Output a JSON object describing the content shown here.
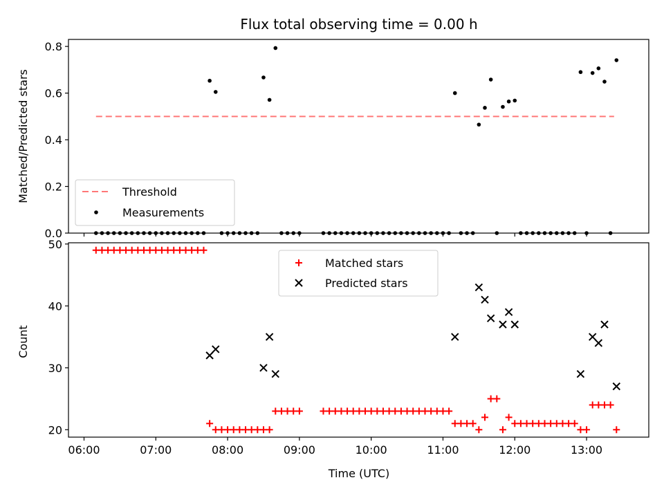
{
  "chart_data": [
    {
      "type": "scatter",
      "title": "Flux total observing time = 0.00 h",
      "xlabel": "",
      "ylabel": "Matched/Predicted stars",
      "ylim": [
        0,
        0.83
      ],
      "yticks": [
        "0.0",
        "0.2",
        "0.4",
        "0.6",
        "0.8"
      ],
      "ytick_values": [
        0.0,
        0.2,
        0.4,
        0.6,
        0.8
      ],
      "legend_position": "lower-left",
      "grid": false,
      "threshold": {
        "name": "Threshold",
        "value": 0.5,
        "x_start": "06:10",
        "x_end": "13:23",
        "color": "#ff7777",
        "style": "dashed"
      },
      "series": [
        {
          "name": "Measurements",
          "color": "#000000",
          "marker": "dot",
          "points": [
            [
              "06:10",
              0
            ],
            [
              "06:15",
              0
            ],
            [
              "06:20",
              0
            ],
            [
              "06:25",
              0
            ],
            [
              "06:30",
              0
            ],
            [
              "06:35",
              0
            ],
            [
              "06:40",
              0
            ],
            [
              "06:45",
              0
            ],
            [
              "06:50",
              0
            ],
            [
              "06:55",
              0
            ],
            [
              "07:00",
              0
            ],
            [
              "07:05",
              0
            ],
            [
              "07:10",
              0
            ],
            [
              "07:15",
              0
            ],
            [
              "07:20",
              0
            ],
            [
              "07:25",
              0
            ],
            [
              "07:30",
              0
            ],
            [
              "07:35",
              0
            ],
            [
              "07:40",
              0
            ],
            [
              "07:45",
              0.653
            ],
            [
              "07:50",
              0.605
            ],
            [
              "07:55",
              0
            ],
            [
              "08:00",
              0
            ],
            [
              "08:05",
              0
            ],
            [
              "08:10",
              0
            ],
            [
              "08:15",
              0
            ],
            [
              "08:20",
              0
            ],
            [
              "08:25",
              0
            ],
            [
              "08:30",
              0.667
            ],
            [
              "08:35",
              0.571
            ],
            [
              "08:40",
              0.793
            ],
            [
              "08:45",
              0
            ],
            [
              "08:50",
              0
            ],
            [
              "08:55",
              0
            ],
            [
              "09:00",
              0
            ],
            [
              "09:20",
              0
            ],
            [
              "09:25",
              0
            ],
            [
              "09:30",
              0
            ],
            [
              "09:35",
              0
            ],
            [
              "09:40",
              0
            ],
            [
              "09:45",
              0
            ],
            [
              "09:50",
              0
            ],
            [
              "09:55",
              0
            ],
            [
              "10:00",
              0
            ],
            [
              "10:05",
              0
            ],
            [
              "10:10",
              0
            ],
            [
              "10:15",
              0
            ],
            [
              "10:20",
              0
            ],
            [
              "10:25",
              0
            ],
            [
              "10:30",
              0
            ],
            [
              "10:35",
              0
            ],
            [
              "10:40",
              0
            ],
            [
              "10:45",
              0
            ],
            [
              "10:50",
              0
            ],
            [
              "10:55",
              0
            ],
            [
              "11:00",
              0
            ],
            [
              "11:05",
              0
            ],
            [
              "11:10",
              0.6
            ],
            [
              "11:15",
              0
            ],
            [
              "11:20",
              0
            ],
            [
              "11:25",
              0
            ],
            [
              "11:30",
              0.465
            ],
            [
              "11:35",
              0.537
            ],
            [
              "11:40",
              0.658
            ],
            [
              "11:45",
              0
            ],
            [
              "11:50",
              0.541
            ],
            [
              "11:55",
              0.564
            ],
            [
              "12:00",
              0.568
            ],
            [
              "12:05",
              0
            ],
            [
              "12:10",
              0
            ],
            [
              "12:15",
              0
            ],
            [
              "12:20",
              0
            ],
            [
              "12:25",
              0
            ],
            [
              "12:30",
              0
            ],
            [
              "12:35",
              0
            ],
            [
              "12:40",
              0
            ],
            [
              "12:45",
              0
            ],
            [
              "12:50",
              0
            ],
            [
              "12:55",
              0.69
            ],
            [
              "13:00",
              0
            ],
            [
              "13:05",
              0.686
            ],
            [
              "13:10",
              0.706
            ],
            [
              "13:15",
              0.649
            ],
            [
              "13:20",
              0
            ],
            [
              "13:25",
              0.741
            ]
          ]
        }
      ]
    },
    {
      "type": "scatter",
      "title": "",
      "xlabel": "Time (UTC)",
      "ylabel": "Count",
      "ylim": [
        18.8,
        50.2
      ],
      "yticks": [
        "20",
        "30",
        "40",
        "50"
      ],
      "ytick_values": [
        20,
        30,
        40,
        50
      ],
      "xlim": [
        "05:47",
        "13:52"
      ],
      "xticks": [
        "06:00",
        "07:00",
        "08:00",
        "09:00",
        "10:00",
        "11:00",
        "12:00",
        "13:00"
      ],
      "legend_position": "upper-center",
      "grid": false,
      "series": [
        {
          "name": "Matched stars",
          "color": "#ff0000",
          "marker": "plus",
          "points": [
            [
              "06:10",
              49
            ],
            [
              "06:15",
              49
            ],
            [
              "06:20",
              49
            ],
            [
              "06:25",
              49
            ],
            [
              "06:30",
              49
            ],
            [
              "06:35",
              49
            ],
            [
              "06:40",
              49
            ],
            [
              "06:45",
              49
            ],
            [
              "06:50",
              49
            ],
            [
              "06:55",
              49
            ],
            [
              "07:00",
              49
            ],
            [
              "07:05",
              49
            ],
            [
              "07:10",
              49
            ],
            [
              "07:15",
              49
            ],
            [
              "07:20",
              49
            ],
            [
              "07:25",
              49
            ],
            [
              "07:30",
              49
            ],
            [
              "07:35",
              49
            ],
            [
              "07:40",
              49
            ],
            [
              "07:45",
              21
            ],
            [
              "07:50",
              20
            ],
            [
              "07:55",
              20
            ],
            [
              "08:00",
              20
            ],
            [
              "08:05",
              20
            ],
            [
              "08:10",
              20
            ],
            [
              "08:15",
              20
            ],
            [
              "08:20",
              20
            ],
            [
              "08:25",
              20
            ],
            [
              "08:30",
              20
            ],
            [
              "08:35",
              20
            ],
            [
              "08:40",
              23
            ],
            [
              "08:45",
              23
            ],
            [
              "08:50",
              23
            ],
            [
              "08:55",
              23
            ],
            [
              "09:00",
              23
            ],
            [
              "09:20",
              23
            ],
            [
              "09:25",
              23
            ],
            [
              "09:30",
              23
            ],
            [
              "09:35",
              23
            ],
            [
              "09:40",
              23
            ],
            [
              "09:45",
              23
            ],
            [
              "09:50",
              23
            ],
            [
              "09:55",
              23
            ],
            [
              "10:00",
              23
            ],
            [
              "10:05",
              23
            ],
            [
              "10:10",
              23
            ],
            [
              "10:15",
              23
            ],
            [
              "10:20",
              23
            ],
            [
              "10:25",
              23
            ],
            [
              "10:30",
              23
            ],
            [
              "10:35",
              23
            ],
            [
              "10:40",
              23
            ],
            [
              "10:45",
              23
            ],
            [
              "10:50",
              23
            ],
            [
              "10:55",
              23
            ],
            [
              "11:00",
              23
            ],
            [
              "11:05",
              23
            ],
            [
              "11:10",
              21
            ],
            [
              "11:15",
              21
            ],
            [
              "11:20",
              21
            ],
            [
              "11:25",
              21
            ],
            [
              "11:30",
              20
            ],
            [
              "11:35",
              22
            ],
            [
              "11:40",
              25
            ],
            [
              "11:45",
              25
            ],
            [
              "11:50",
              20
            ],
            [
              "11:55",
              22
            ],
            [
              "12:00",
              21
            ],
            [
              "12:05",
              21
            ],
            [
              "12:10",
              21
            ],
            [
              "12:15",
              21
            ],
            [
              "12:20",
              21
            ],
            [
              "12:25",
              21
            ],
            [
              "12:30",
              21
            ],
            [
              "12:35",
              21
            ],
            [
              "12:40",
              21
            ],
            [
              "12:45",
              21
            ],
            [
              "12:50",
              21
            ],
            [
              "12:55",
              20
            ],
            [
              "13:00",
              20
            ],
            [
              "13:05",
              24
            ],
            [
              "13:10",
              24
            ],
            [
              "13:15",
              24
            ],
            [
              "13:20",
              24
            ],
            [
              "13:25",
              20
            ]
          ]
        },
        {
          "name": "Predicted stars",
          "color": "#000000",
          "marker": "x",
          "points": [
            [
              "07:45",
              32
            ],
            [
              "07:50",
              33
            ],
            [
              "08:30",
              30
            ],
            [
              "08:35",
              35
            ],
            [
              "08:40",
              29
            ],
            [
              "11:10",
              35
            ],
            [
              "11:30",
              43
            ],
            [
              "11:35",
              41
            ],
            [
              "11:40",
              38
            ],
            [
              "11:50",
              37
            ],
            [
              "11:55",
              39
            ],
            [
              "12:00",
              37
            ],
            [
              "12:55",
              29
            ],
            [
              "13:05",
              35
            ],
            [
              "13:10",
              34
            ],
            [
              "13:15",
              37
            ],
            [
              "13:25",
              27
            ]
          ]
        }
      ]
    }
  ]
}
